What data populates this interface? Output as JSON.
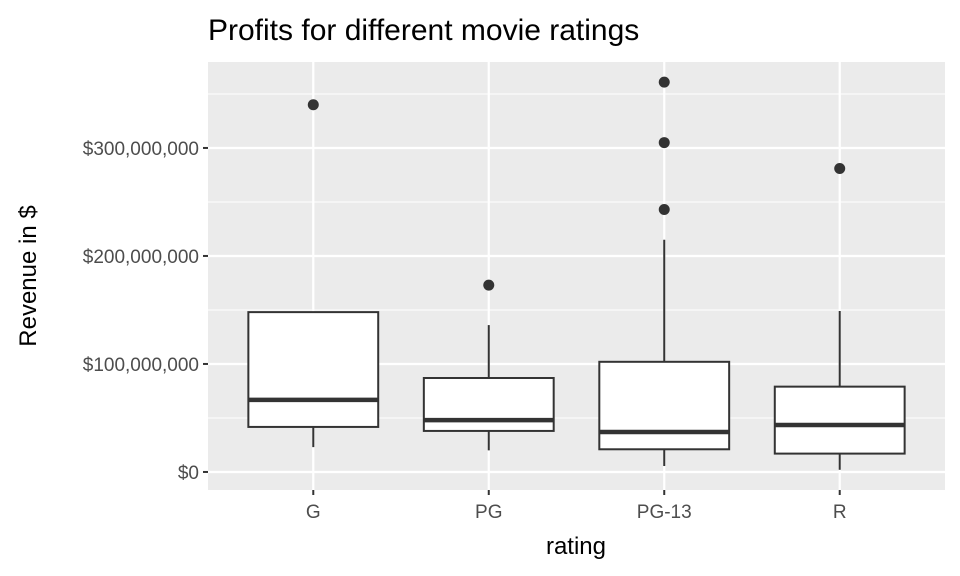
{
  "chart_data": {
    "type": "boxplot",
    "title": "Profits for different movie ratings",
    "xlabel": "rating",
    "ylabel": "Revenue in $",
    "categories": [
      "G",
      "PG",
      "PG-13",
      "R"
    ],
    "ylim": [
      -16700000,
      379600000
    ],
    "yticks": [
      0,
      100000000,
      200000000,
      300000000
    ],
    "ytick_labels": [
      "$0",
      "$100,000,000",
      "$200,000,000",
      "$300,000,000"
    ],
    "grid": true,
    "boxes": [
      {
        "category": "G",
        "lower_whisker": 23000000,
        "q1": 41700000,
        "median": 66700000,
        "q3": 148000000,
        "upper_whisker": 148000000,
        "outliers": [
          340000000
        ]
      },
      {
        "category": "PG",
        "lower_whisker": 20000000,
        "q1": 38000000,
        "median": 48000000,
        "q3": 87000000,
        "upper_whisker": 136000000,
        "outliers": [
          173000000
        ]
      },
      {
        "category": "PG-13",
        "lower_whisker": 5500000,
        "q1": 21000000,
        "median": 37000000,
        "q3": 102000000,
        "upper_whisker": 215000000,
        "outliers": [
          243000000,
          305000000,
          361000000
        ]
      },
      {
        "category": "R",
        "lower_whisker": 2000000,
        "q1": 17000000,
        "median": 43500000,
        "q3": 79000000,
        "upper_whisker": 149000000,
        "outliers": [
          281000000
        ]
      }
    ]
  }
}
